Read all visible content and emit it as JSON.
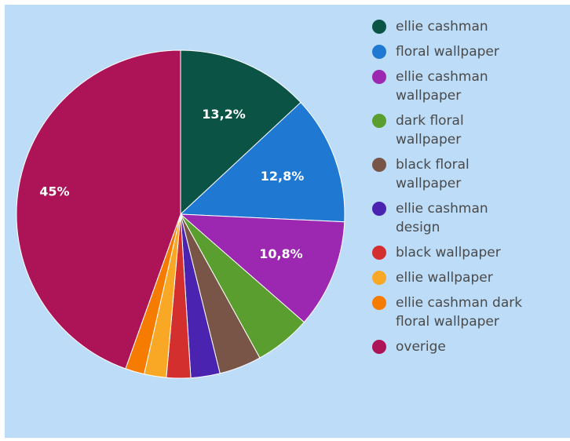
{
  "chart_data": {
    "type": "pie",
    "slices": [
      {
        "label": "ellie cashman",
        "value": 13.2,
        "display": "13,2%",
        "color": "#0b5345"
      },
      {
        "label": "floral wallpaper",
        "value": 12.8,
        "display": "12,8%",
        "color": "#1f78d1"
      },
      {
        "label": "ellie cashman\nwallpaper",
        "value": 10.8,
        "display": "10,8%",
        "color": "#9c27b0"
      },
      {
        "label": "dark floral\nwallpaper",
        "value": 5.6,
        "display": "",
        "color": "#5a9e2f"
      },
      {
        "label": "black floral\nwallpaper",
        "value": 4.2,
        "display": "",
        "color": "#795548"
      },
      {
        "label": "ellie cashman\ndesign",
        "value": 2.9,
        "display": "",
        "color": "#4a24b0"
      },
      {
        "label": "black wallpaper",
        "value": 2.4,
        "display": "",
        "color": "#d32f2f"
      },
      {
        "label": "ellie wallpaper",
        "value": 2.2,
        "display": "",
        "color": "#f9a825"
      },
      {
        "label": "ellie cashman dark\nfloral wallpaper",
        "value": 1.9,
        "display": "",
        "color": "#f57c00"
      },
      {
        "label": "overige",
        "value": 45.0,
        "display": "45%",
        "color": "#ad1457"
      }
    ],
    "legend_position": "right"
  }
}
